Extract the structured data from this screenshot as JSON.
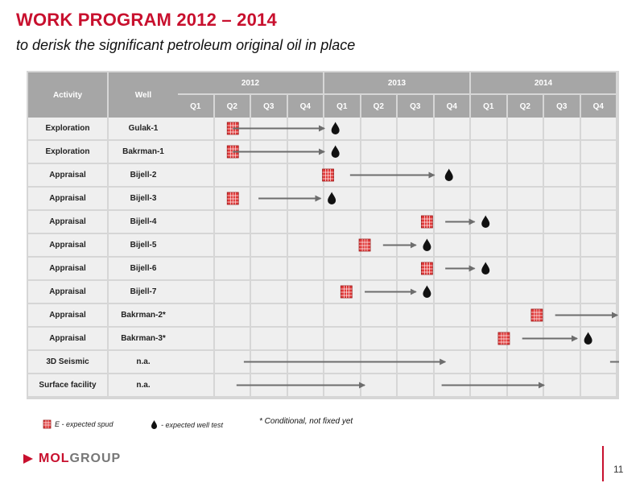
{
  "title": "WORK PROGRAM 2012 – 2014",
  "subtitle": "to derisk the significant petroleum original oil in place",
  "table": {
    "header_activity": "Activity",
    "header_well": "Well",
    "years": [
      "2012",
      "2013",
      "2014"
    ],
    "quarters": [
      "Q1",
      "Q2",
      "Q3",
      "Q4",
      "Q1",
      "Q2",
      "Q3",
      "Q4",
      "Q1",
      "Q2",
      "Q3",
      "Q4"
    ],
    "rows": [
      {
        "activity": "Exploration",
        "well": "Gulak-1",
        "spud": 1,
        "arrow": [
          1,
          3.5
        ],
        "test": 3.8
      },
      {
        "activity": "Exploration",
        "well": "Bakrman-1",
        "spud": 1,
        "arrow": [
          1,
          3.5
        ],
        "test": 3.8
      },
      {
        "activity": "Appraisal",
        "well": "Bijell-2",
        "spud": 3.6,
        "arrow": [
          4.2,
          6.5
        ],
        "test": 6.9
      },
      {
        "activity": "Appraisal",
        "well": "Bijell-3",
        "spud": 1,
        "arrow": [
          1.7,
          3.4
        ],
        "test": 3.7
      },
      {
        "activity": "Appraisal",
        "well": "Bijell-4",
        "spud": 6.3,
        "arrow": [
          6.8,
          7.6
        ],
        "test": 7.9
      },
      {
        "activity": "Appraisal",
        "well": "Bijell-5",
        "spud": 4.6,
        "arrow": [
          5.1,
          6.0
        ],
        "test": 6.3
      },
      {
        "activity": "Appraisal",
        "well": "Bijell-6",
        "spud": 6.3,
        "arrow": [
          6.8,
          7.6
        ],
        "test": 7.9
      },
      {
        "activity": "Appraisal",
        "well": "Bijell-7",
        "spud": 4.1,
        "arrow": [
          4.6,
          6.0
        ],
        "test": 6.3
      },
      {
        "activity": "Appraisal",
        "well": "Bakrman-2*",
        "spud": 9.3,
        "arrow": [
          9.8,
          11.5
        ],
        "test": 11.8
      },
      {
        "activity": "Appraisal",
        "well": "Bakrman-3*",
        "spud": 8.4,
        "arrow": [
          8.9,
          10.4
        ],
        "test": 10.7
      },
      {
        "activity": "3D Seismic",
        "well": "n.a.",
        "arrow": [
          1.3,
          6.8
        ],
        "arrow2": [
          11.3,
          11.9
        ]
      },
      {
        "activity": "Surface facility",
        "well": "n.a.",
        "arrow": [
          1.1,
          4.6
        ],
        "arrow2": [
          6.7,
          9.5
        ]
      }
    ]
  },
  "legend": {
    "spud_label": "E - expected spud",
    "test_label": "- expected well test"
  },
  "footnote": "* Conditional, not fixed yet",
  "logo": {
    "mol": "MOL",
    "group": "GROUP"
  },
  "page_number": "11",
  "colors": {
    "accent": "#c8102e",
    "header": "#a6a6a6",
    "cell": "#efefef",
    "arrow": "#6d6d6d"
  }
}
